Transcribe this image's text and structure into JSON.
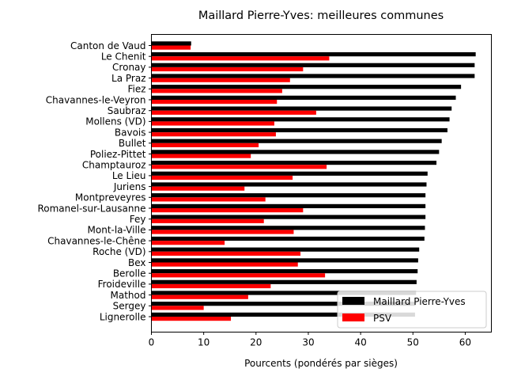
{
  "chart_data": {
    "type": "bar",
    "orientation": "horizontal",
    "title": "Maillard Pierre-Yves: meilleures communes",
    "xlabel": "Pourcents (pondérés par sièges)",
    "ylabel": "",
    "xlim": [
      0,
      65
    ],
    "xticks": [
      "0",
      "10",
      "20",
      "30",
      "40",
      "50",
      "60"
    ],
    "grid": false,
    "legend_position": "lower-right",
    "categories": [
      "Canton de Vaud",
      "Le Chenit",
      "Cronay",
      "La Praz",
      "Fiez",
      "Chavannes-le-Veyron",
      "Saubraz",
      "Mollens (VD)",
      "Bavois",
      "Bullet",
      "Poliez-Pittet",
      "Champtauroz",
      "Le Lieu",
      "Juriens",
      "Montpreveyres",
      "Romanel-sur-Lausanne",
      "Fey",
      "Mont-la-Ville",
      "Chavannes-le-Chêne",
      "Roche (VD)",
      "Bex",
      "Berolle",
      "Froideville",
      "Mathod",
      "Sergey",
      "Lignerolle"
    ],
    "series": [
      {
        "name": "Maillard Pierre-Yves",
        "color": "#000000",
        "values": [
          7.6,
          62.0,
          61.8,
          61.8,
          59.2,
          58.2,
          57.4,
          57.0,
          56.6,
          55.5,
          55.0,
          54.5,
          52.8,
          52.6,
          52.4,
          52.4,
          52.4,
          52.3,
          52.2,
          51.2,
          51.0,
          50.9,
          50.7,
          50.6,
          50.5,
          50.4
        ]
      },
      {
        "name": "PSV",
        "color": "#ff0000",
        "values": [
          7.5,
          34.0,
          29.0,
          26.5,
          25.0,
          24.0,
          31.5,
          23.5,
          23.8,
          20.5,
          19.0,
          33.5,
          27.0,
          17.8,
          21.8,
          29.0,
          21.5,
          27.2,
          14.0,
          28.5,
          28.0,
          33.2,
          22.8,
          18.5,
          10.0,
          15.2
        ]
      }
    ]
  }
}
